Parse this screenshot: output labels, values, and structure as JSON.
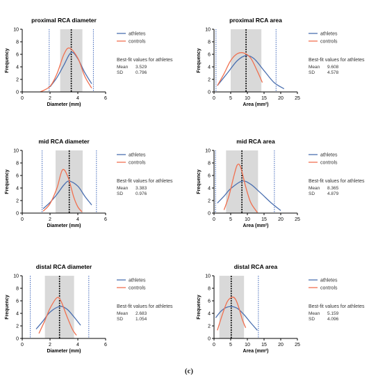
{
  "caption": "(c)",
  "colors": {
    "athletes": "#4a6fb0",
    "controls": "#f07050",
    "shade": "#d9d9d9",
    "marker": "#3b63b8",
    "axis": "#000000"
  },
  "chart_data": [
    {
      "type": "line",
      "title": "proximal RCA diameter",
      "xlabel": "Diameter (mm)",
      "ylabel": "Frequency",
      "xlim": [
        0,
        6
      ],
      "ylim": [
        0,
        10
      ],
      "xticks": [
        0,
        2,
        4,
        6
      ],
      "yticks": [
        0,
        2,
        4,
        6,
        8,
        10
      ],
      "legend": [
        "athletes",
        "controls"
      ],
      "legend_position": "right",
      "shaded_range": [
        2.73,
        4.33
      ],
      "mean_line": 3.529,
      "limit_lines": [
        1.94,
        5.12
      ],
      "series": [
        {
          "name": "athletes",
          "x": [
            2.0,
            2.5,
            3.0,
            3.529,
            4.0,
            4.5,
            5.0
          ],
          "y": [
            0.8,
            2.3,
            4.3,
            6.3,
            5.3,
            3.1,
            1.3
          ]
        },
        {
          "name": "controls",
          "x": [
            1.3,
            2.0,
            2.5,
            3.0,
            3.4,
            4.0,
            4.5,
            5.0
          ],
          "y": [
            0.0,
            0.9,
            2.9,
            6.0,
            7.0,
            5.4,
            2.5,
            0.6
          ]
        }
      ],
      "fit_label": "Best-fit values for athletes",
      "fit_rows": [
        {
          "label": "Mean",
          "value": "3.529"
        },
        {
          "label": "SD",
          "value": "0.796"
        }
      ]
    },
    {
      "type": "line",
      "title": "proximal RCA area",
      "xlabel": "Area (mm²)",
      "ylabel": "Frequency",
      "xlim": [
        0,
        25
      ],
      "ylim": [
        0,
        10
      ],
      "xticks": [
        0,
        5,
        10,
        15,
        20,
        25
      ],
      "yticks": [
        0,
        2,
        4,
        6,
        8,
        10
      ],
      "legend": [
        "athletes",
        "controls"
      ],
      "legend_position": "right",
      "shaded_range": [
        5.0,
        14.2
      ],
      "mean_line": 9.608,
      "limit_lines": [
        0.6,
        18.6
      ],
      "series": [
        {
          "name": "athletes",
          "x": [
            1.0,
            4.0,
            7.0,
            9.608,
            12.0,
            15.0,
            18.0,
            21.0
          ],
          "y": [
            1.0,
            3.0,
            5.0,
            5.8,
            5.3,
            3.4,
            1.5,
            0.5
          ]
        },
        {
          "name": "controls",
          "x": [
            1.0,
            3.0,
            5.0,
            7.0,
            9.0,
            11.0,
            13.0,
            14.5
          ],
          "y": [
            1.0,
            2.9,
            5.0,
            6.1,
            6.2,
            5.4,
            3.3,
            1.5
          ]
        }
      ],
      "fit_label": "Best-fit values for athletes",
      "fit_rows": [
        {
          "label": "Mean",
          "value": "9.608"
        },
        {
          "label": "SD",
          "value": "4.578"
        }
      ]
    },
    {
      "type": "line",
      "title": "mid RCA diameter",
      "xlabel": "Diameter (mm)",
      "ylabel": "Frequency",
      "xlim": [
        0,
        6
      ],
      "ylim": [
        0,
        10
      ],
      "xticks": [
        0,
        2,
        4,
        6
      ],
      "yticks": [
        0,
        2,
        4,
        6,
        8,
        10
      ],
      "legend": [
        "athletes",
        "controls"
      ],
      "legend_position": "right",
      "shaded_range": [
        2.4,
        4.35
      ],
      "mean_line": 3.383,
      "limit_lines": [
        1.43,
        5.34
      ],
      "series": [
        {
          "name": "athletes",
          "x": [
            1.5,
            2.0,
            2.5,
            3.0,
            3.383,
            4.0,
            4.5,
            5.0
          ],
          "y": [
            0.7,
            1.7,
            3.0,
            4.5,
            5.1,
            4.3,
            2.7,
            1.3
          ]
        },
        {
          "name": "controls",
          "x": [
            1.5,
            2.0,
            2.5,
            2.9,
            3.3,
            3.7,
            4.0,
            4.3
          ],
          "y": [
            0.3,
            1.5,
            4.0,
            6.9,
            5.7,
            2.6,
            1.0,
            0.2
          ]
        }
      ],
      "fit_label": "Best-fit values for athletes",
      "fit_rows": [
        {
          "label": "Mean",
          "value": "3.383"
        },
        {
          "label": "SD",
          "value": "0.976"
        }
      ]
    },
    {
      "type": "line",
      "title": "mid RCA area",
      "xlabel": "Area (mm²)",
      "ylabel": "Frequency",
      "xlim": [
        0,
        25
      ],
      "ylim": [
        0,
        10
      ],
      "xticks": [
        0,
        5,
        10,
        15,
        20,
        25
      ],
      "yticks": [
        0,
        2,
        4,
        6,
        8,
        10
      ],
      "legend": [
        "athletes",
        "controls"
      ],
      "legend_position": "right",
      "shaded_range": [
        3.6,
        13.2
      ],
      "mean_line": 8.365,
      "limit_lines": [
        0.45,
        18.1
      ],
      "series": [
        {
          "name": "athletes",
          "x": [
            1.0,
            3.0,
            5.0,
            8.365,
            11.0,
            14.0,
            17.0,
            20.0
          ],
          "y": [
            1.6,
            2.7,
            3.9,
            5.1,
            4.6,
            3.2,
            1.7,
            0.4
          ]
        },
        {
          "name": "controls",
          "x": [
            3.0,
            4.5,
            6.0,
            7.0,
            8.0,
            9.5,
            11.0,
            13.0
          ],
          "y": [
            0.5,
            2.8,
            6.0,
            7.7,
            7.3,
            4.2,
            1.7,
            0.1
          ]
        }
      ],
      "fit_label": "Best-fit values for athletes",
      "fit_rows": [
        {
          "label": "Mean",
          "value": "8.365"
        },
        {
          "label": "SD",
          "value": "4.879"
        }
      ]
    },
    {
      "type": "line",
      "title": "distal RCA diameter",
      "xlabel": "Diameter (mm)",
      "ylabel": "Frequency",
      "xlim": [
        0,
        6
      ],
      "ylim": [
        0,
        10
      ],
      "xticks": [
        0,
        2,
        4,
        6
      ],
      "yticks": [
        0,
        2,
        4,
        6,
        8,
        10
      ],
      "legend": [
        "athletes",
        "controls"
      ],
      "legend_position": "right",
      "shaded_range": [
        1.63,
        3.73
      ],
      "mean_line": 2.683,
      "limit_lines": [
        0.58,
        4.79
      ],
      "series": [
        {
          "name": "athletes",
          "x": [
            1.0,
            1.5,
            2.0,
            2.683,
            3.2,
            3.7,
            4.2
          ],
          "y": [
            1.5,
            2.8,
            4.2,
            5.1,
            4.7,
            3.5,
            2.1
          ]
        },
        {
          "name": "controls",
          "x": [
            1.2,
            1.6,
            2.0,
            2.5,
            2.8,
            3.2,
            3.6,
            3.9
          ],
          "y": [
            0.8,
            2.7,
            4.8,
            6.5,
            5.9,
            3.6,
            1.5,
            0.5
          ]
        }
      ],
      "fit_label": "Best-fit values for athletes",
      "fit_rows": [
        {
          "label": "Mean",
          "value": "2.683"
        },
        {
          "label": "SD",
          "value": "1.054"
        }
      ]
    },
    {
      "type": "line",
      "title": "distal RCA area",
      "xlabel": "Area (mm²)",
      "ylabel": "Frequency",
      "xlim": [
        0,
        25
      ],
      "ylim": [
        0,
        10
      ],
      "xticks": [
        0,
        5,
        10,
        15,
        20,
        25
      ],
      "yticks": [
        0,
        2,
        4,
        6,
        8,
        10
      ],
      "legend": [
        "athletes",
        "controls"
      ],
      "legend_position": "right",
      "shaded_range": [
        1.6,
        9.0
      ],
      "mean_line": 5.159,
      "limit_lines": [
        -2.9,
        13.3
      ],
      "series": [
        {
          "name": "athletes",
          "x": [
            0.5,
            2.0,
            3.5,
            5.159,
            7.0,
            9.0,
            11.0,
            13.0
          ],
          "y": [
            3.3,
            4.3,
            4.9,
            5.1,
            4.8,
            3.8,
            2.5,
            1.3
          ]
        },
        {
          "name": "controls",
          "x": [
            1.0,
            2.5,
            4.0,
            5.5,
            6.5,
            7.5,
            8.5,
            9.5
          ],
          "y": [
            1.3,
            3.8,
            5.9,
            6.6,
            6.2,
            4.8,
            3.0,
            1.7
          ]
        }
      ],
      "fit_label": "Best-fit values for athletes",
      "fit_rows": [
        {
          "label": "Mean",
          "value": "5.159"
        },
        {
          "label": "SD",
          "value": "4.096"
        }
      ]
    }
  ]
}
